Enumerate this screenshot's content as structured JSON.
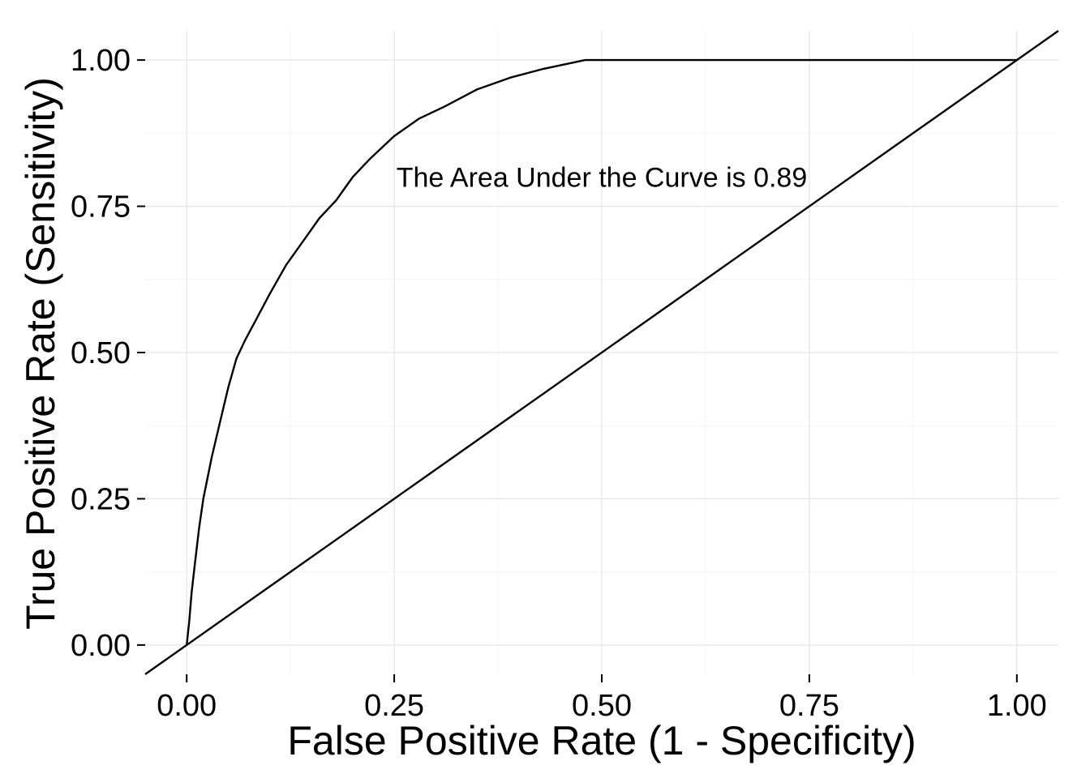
{
  "chart_data": {
    "type": "line",
    "title": "",
    "xlabel": "False Positive Rate (1 - Specificity)",
    "ylabel": "True Positive Rate (Sensitivity)",
    "xlim": [
      -0.05,
      1.05
    ],
    "ylim": [
      -0.05,
      1.05
    ],
    "x_ticks": [
      0,
      0.25,
      0.5,
      0.75,
      1
    ],
    "y_ticks": [
      0,
      0.25,
      0.5,
      0.75,
      1
    ],
    "x_tick_labels": [
      "0.00",
      "0.25",
      "0.50",
      "0.75",
      "1.00"
    ],
    "y_tick_labels": [
      "0.00",
      "0.25",
      "0.50",
      "0.75",
      "1.00"
    ],
    "grid": true,
    "series": [
      {
        "values": [
          {
            "x": 0.0,
            "y": 0.0
          },
          {
            "x": 0.003,
            "y": 0.04
          },
          {
            "x": 0.006,
            "y": 0.09
          },
          {
            "x": 0.01,
            "y": 0.14
          },
          {
            "x": 0.015,
            "y": 0.2
          },
          {
            "x": 0.02,
            "y": 0.25
          },
          {
            "x": 0.03,
            "y": 0.32
          },
          {
            "x": 0.04,
            "y": 0.38
          },
          {
            "x": 0.05,
            "y": 0.44
          },
          {
            "x": 0.06,
            "y": 0.49
          },
          {
            "x": 0.07,
            "y": 0.52
          },
          {
            "x": 0.085,
            "y": 0.56
          },
          {
            "x": 0.1,
            "y": 0.6
          },
          {
            "x": 0.12,
            "y": 0.65
          },
          {
            "x": 0.14,
            "y": 0.69
          },
          {
            "x": 0.16,
            "y": 0.73
          },
          {
            "x": 0.18,
            "y": 0.76
          },
          {
            "x": 0.2,
            "y": 0.8
          },
          {
            "x": 0.22,
            "y": 0.83
          },
          {
            "x": 0.25,
            "y": 0.87
          },
          {
            "x": 0.28,
            "y": 0.9
          },
          {
            "x": 0.31,
            "y": 0.92
          },
          {
            "x": 0.35,
            "y": 0.95
          },
          {
            "x": 0.39,
            "y": 0.97
          },
          {
            "x": 0.43,
            "y": 0.985
          },
          {
            "x": 0.48,
            "y": 1.0
          },
          {
            "x": 0.6,
            "y": 1.0
          },
          {
            "x": 0.8,
            "y": 1.0
          },
          {
            "x": 1.0,
            "y": 1.0
          }
        ]
      }
    ],
    "reference_line": {
      "slope": 1,
      "intercept": 0
    },
    "annotations": [
      {
        "text": "The Area Under the Curve is 0.89",
        "x": 0.5,
        "y": 0.8
      }
    ]
  }
}
